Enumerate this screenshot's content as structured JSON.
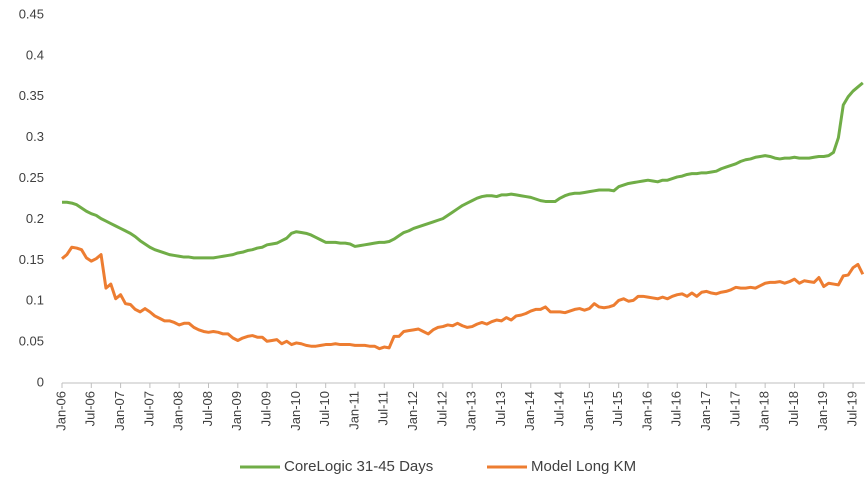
{
  "chart_data": {
    "type": "line",
    "categories": [
      "Jan-06",
      null,
      null,
      null,
      null,
      null,
      "Jul-06",
      null,
      null,
      null,
      null,
      null,
      "Jan-07",
      null,
      null,
      null,
      null,
      null,
      "Jul-07",
      null,
      null,
      null,
      null,
      null,
      "Jan-08",
      null,
      null,
      null,
      null,
      null,
      "Jul-08",
      null,
      null,
      null,
      null,
      null,
      "Jan-09",
      null,
      null,
      null,
      null,
      null,
      "Jul-09",
      null,
      null,
      null,
      null,
      null,
      "Jan-10",
      null,
      null,
      null,
      null,
      null,
      "Jul-10",
      null,
      null,
      null,
      null,
      null,
      "Jan-11",
      null,
      null,
      null,
      null,
      null,
      "Jul-11",
      null,
      null,
      null,
      null,
      null,
      "Jan-12",
      null,
      null,
      null,
      null,
      null,
      "Jul-12",
      null,
      null,
      null,
      null,
      null,
      "Jan-13",
      null,
      null,
      null,
      null,
      null,
      "Jul-13",
      null,
      null,
      null,
      null,
      null,
      "Jan-14",
      null,
      null,
      null,
      null,
      null,
      "Jul-14",
      null,
      null,
      null,
      null,
      null,
      "Jan-15",
      null,
      null,
      null,
      null,
      null,
      "Jul-15",
      null,
      null,
      null,
      null,
      null,
      "Jan-16",
      null,
      null,
      null,
      null,
      null,
      "Jul-16",
      null,
      null,
      null,
      null,
      null,
      "Jan-17",
      null,
      null,
      null,
      null,
      null,
      "Jul-17",
      null,
      null,
      null,
      null,
      null,
      "Jan-18",
      null,
      null,
      null,
      null,
      null,
      "Jul-18",
      null,
      null,
      null,
      null,
      null,
      "Jan-19",
      null,
      null,
      null,
      null,
      null,
      "Jul-19",
      null,
      null
    ],
    "series": [
      {
        "name": "CoreLogic 31-45 Days",
        "color": "#70ad47",
        "values": [
          0.221,
          0.221,
          0.22,
          0.218,
          0.214,
          0.21,
          0.207,
          0.205,
          0.201,
          0.198,
          0.195,
          0.192,
          0.189,
          0.186,
          0.183,
          0.179,
          0.174,
          0.17,
          0.166,
          0.163,
          0.161,
          0.159,
          0.157,
          0.156,
          0.155,
          0.154,
          0.154,
          0.153,
          0.153,
          0.153,
          0.153,
          0.153,
          0.154,
          0.155,
          0.156,
          0.157,
          0.159,
          0.16,
          0.162,
          0.163,
          0.165,
          0.166,
          0.169,
          0.17,
          0.171,
          0.174,
          0.177,
          0.183,
          0.185,
          0.184,
          0.183,
          0.181,
          0.178,
          0.175,
          0.172,
          0.172,
          0.172,
          0.171,
          0.171,
          0.17,
          0.167,
          0.168,
          0.169,
          0.17,
          0.171,
          0.172,
          0.172,
          0.173,
          0.176,
          0.18,
          0.184,
          0.186,
          0.189,
          0.191,
          0.193,
          0.195,
          0.197,
          0.199,
          0.201,
          0.205,
          0.209,
          0.213,
          0.217,
          0.22,
          0.223,
          0.226,
          0.228,
          0.229,
          0.229,
          0.228,
          0.23,
          0.23,
          0.231,
          0.23,
          0.229,
          0.228,
          0.227,
          0.225,
          0.223,
          0.222,
          0.222,
          0.222,
          0.226,
          0.229,
          0.231,
          0.232,
          0.232,
          0.233,
          0.234,
          0.235,
          0.236,
          0.236,
          0.236,
          0.235,
          0.24,
          0.242,
          0.244,
          0.245,
          0.246,
          0.247,
          0.248,
          0.247,
          0.246,
          0.248,
          0.248,
          0.25,
          0.252,
          0.253,
          0.255,
          0.256,
          0.256,
          0.257,
          0.257,
          0.258,
          0.259,
          0.262,
          0.264,
          0.266,
          0.268,
          0.271,
          0.273,
          0.274,
          0.276,
          0.277,
          0.278,
          0.277,
          0.275,
          0.274,
          0.275,
          0.275,
          0.276,
          0.275,
          0.275,
          0.275,
          0.276,
          0.277,
          0.277,
          0.278,
          0.282,
          0.3,
          0.34,
          0.35,
          0.357,
          0.362,
          0.367
        ]
      },
      {
        "name": "Model Long KM",
        "color": "#ed7d31",
        "values": [
          0.152,
          0.157,
          0.166,
          0.165,
          0.163,
          0.153,
          0.149,
          0.152,
          0.157,
          0.116,
          0.121,
          0.103,
          0.108,
          0.097,
          0.096,
          0.09,
          0.087,
          0.091,
          0.087,
          0.082,
          0.079,
          0.076,
          0.076,
          0.074,
          0.071,
          0.073,
          0.073,
          0.068,
          0.065,
          0.063,
          0.062,
          0.063,
          0.062,
          0.06,
          0.06,
          0.055,
          0.052,
          0.055,
          0.057,
          0.058,
          0.056,
          0.056,
          0.051,
          0.052,
          0.053,
          0.048,
          0.051,
          0.047,
          0.049,
          0.048,
          0.046,
          0.045,
          0.045,
          0.046,
          0.047,
          0.047,
          0.048,
          0.047,
          0.047,
          0.047,
          0.046,
          0.046,
          0.046,
          0.045,
          0.045,
          0.042,
          0.044,
          0.043,
          0.057,
          0.057,
          0.063,
          0.064,
          0.065,
          0.066,
          0.063,
          0.06,
          0.065,
          0.068,
          0.069,
          0.071,
          0.07,
          0.073,
          0.07,
          0.068,
          0.069,
          0.072,
          0.074,
          0.072,
          0.075,
          0.077,
          0.076,
          0.08,
          0.077,
          0.082,
          0.083,
          0.085,
          0.088,
          0.09,
          0.09,
          0.093,
          0.087,
          0.087,
          0.087,
          0.086,
          0.088,
          0.09,
          0.091,
          0.089,
          0.091,
          0.097,
          0.093,
          0.092,
          0.093,
          0.095,
          0.101,
          0.103,
          0.1,
          0.101,
          0.106,
          0.106,
          0.105,
          0.104,
          0.103,
          0.105,
          0.103,
          0.106,
          0.108,
          0.109,
          0.106,
          0.11,
          0.106,
          0.111,
          0.112,
          0.11,
          0.109,
          0.111,
          0.112,
          0.114,
          0.117,
          0.116,
          0.116,
          0.117,
          0.116,
          0.119,
          0.122,
          0.123,
          0.123,
          0.124,
          0.122,
          0.124,
          0.127,
          0.122,
          0.125,
          0.124,
          0.123,
          0.129,
          0.118,
          0.122,
          0.121,
          0.12,
          0.131,
          0.132,
          0.141,
          0.145,
          0.133
        ]
      }
    ],
    "ylim": [
      0,
      0.45
    ],
    "yticks": [
      0,
      0.05,
      0.1,
      0.15,
      0.2,
      0.25,
      0.3,
      0.35,
      0.4,
      0.45
    ],
    "grid": false,
    "legend": "bottom"
  }
}
